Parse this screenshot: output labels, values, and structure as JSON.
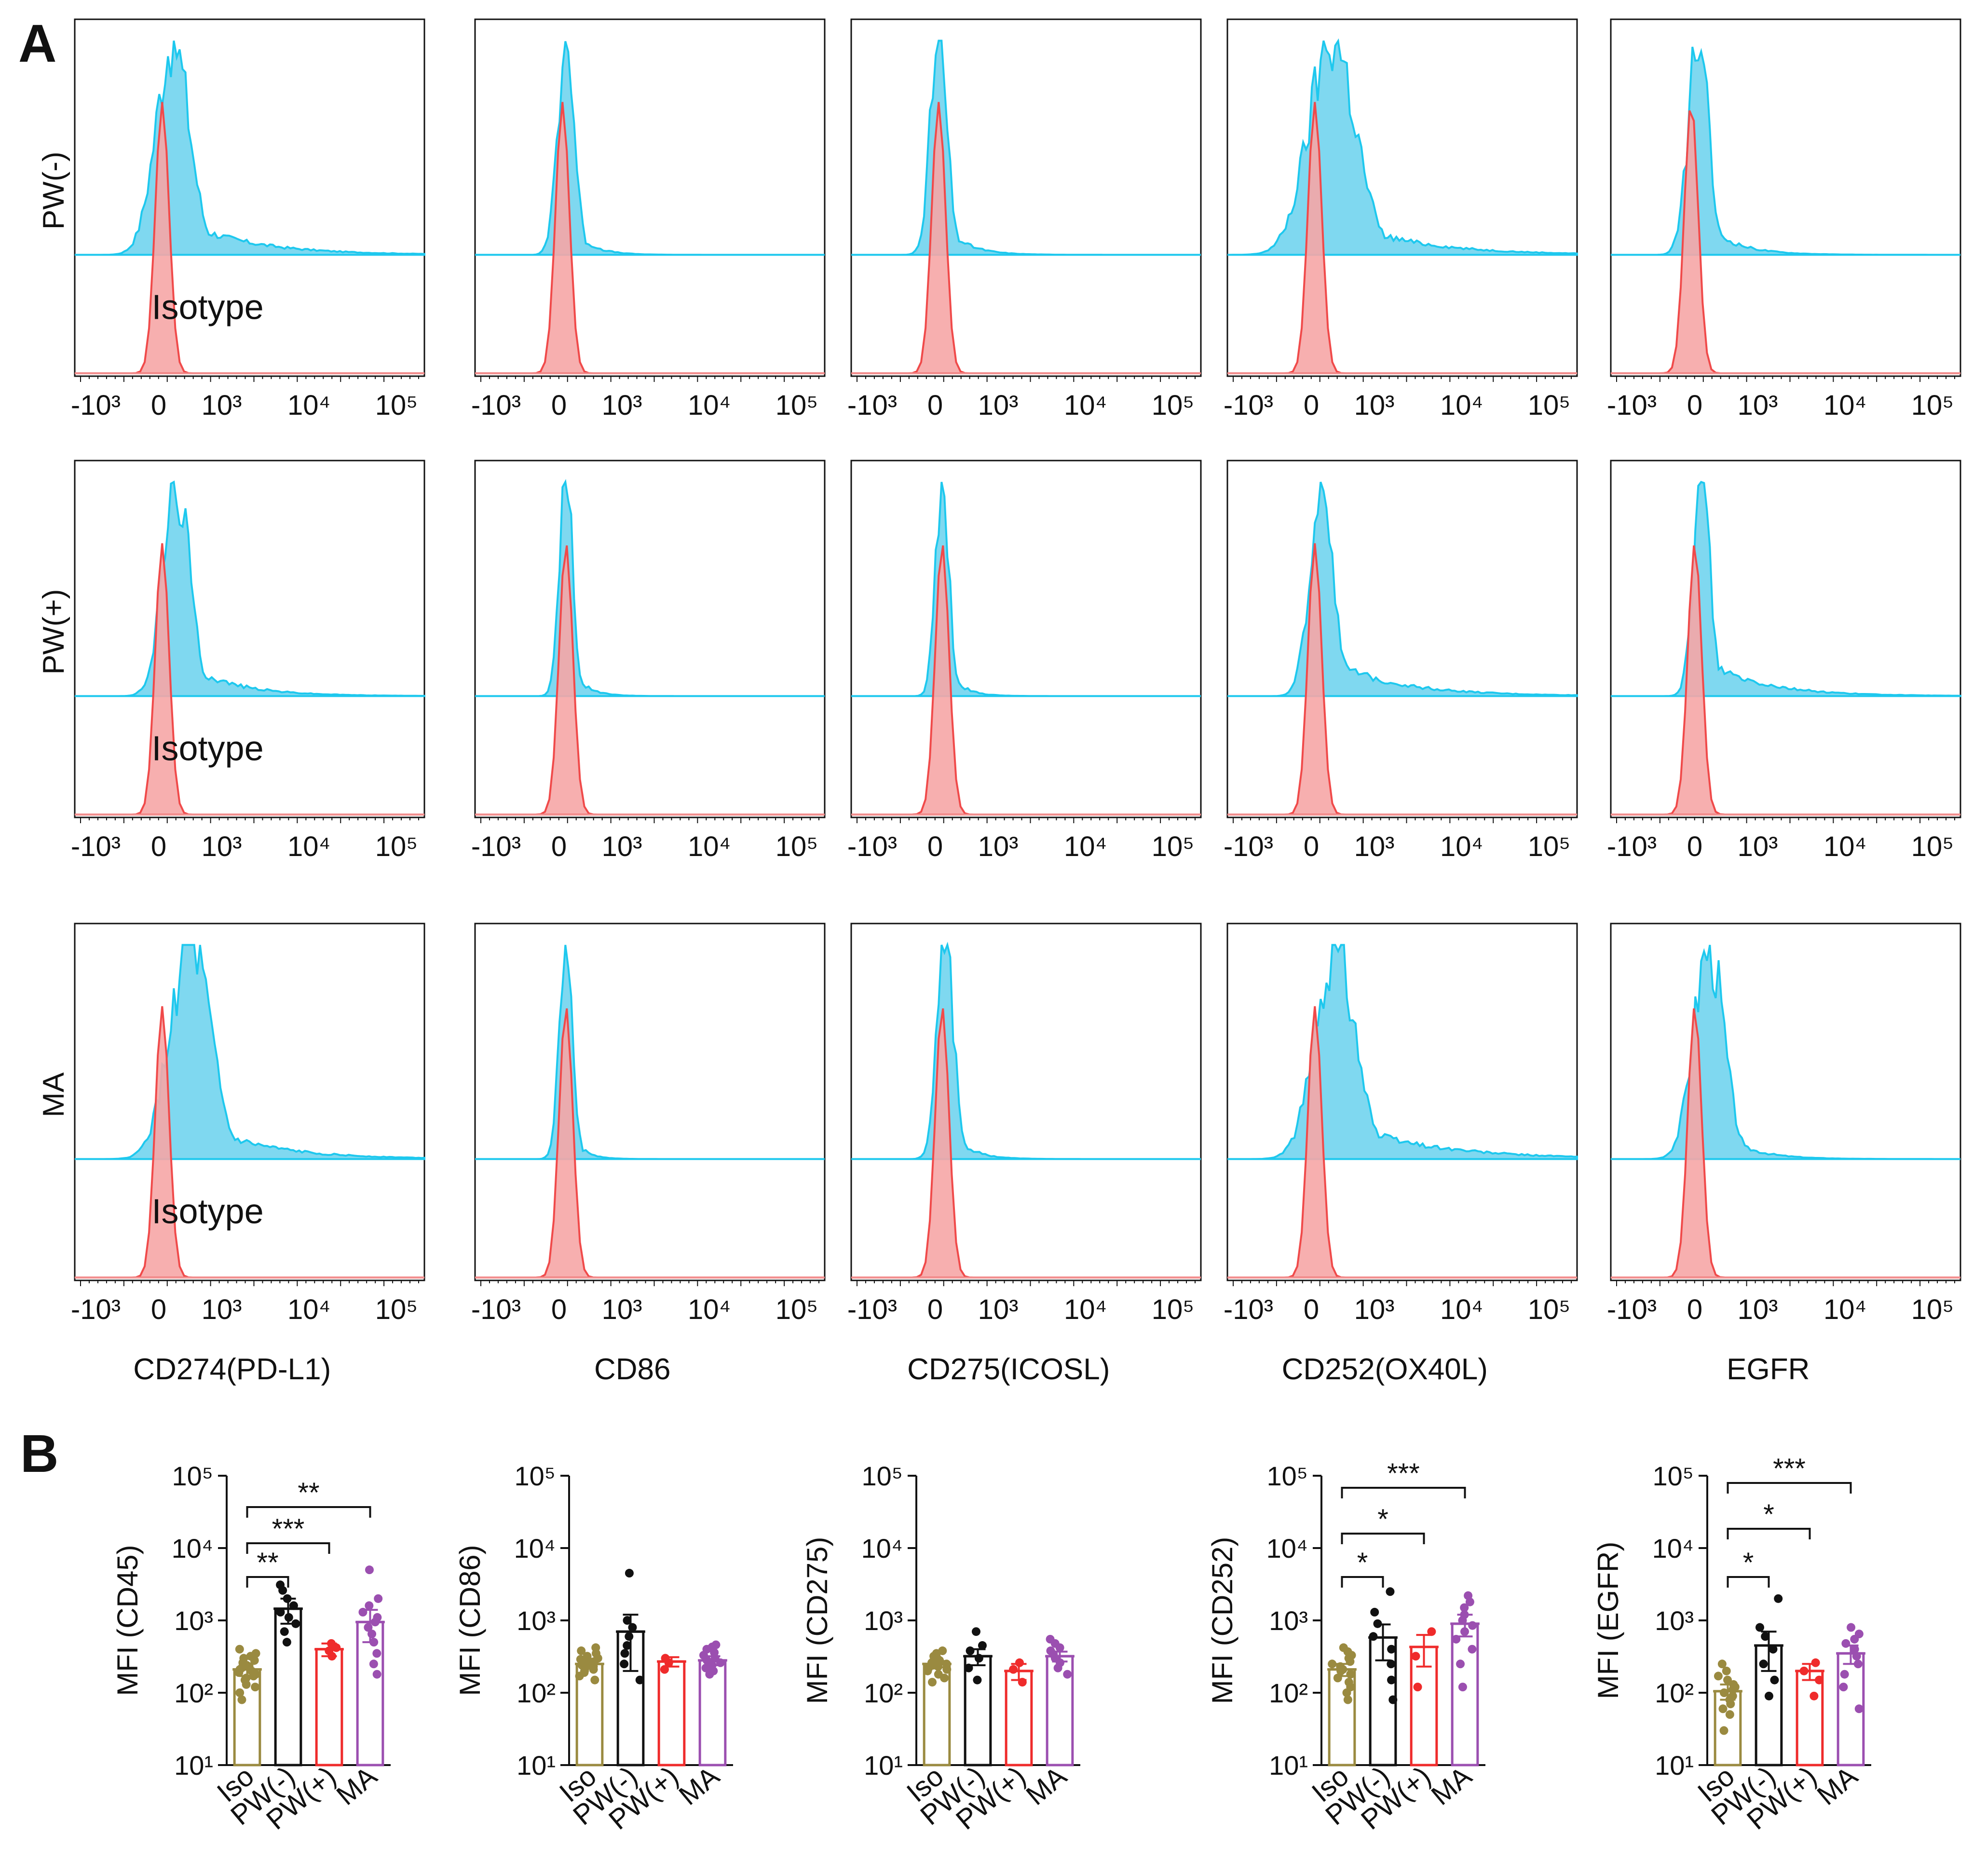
{
  "panel_labels": {
    "A": "A",
    "B": "B"
  },
  "colors": {
    "sample": "#1ec8ee",
    "sample_fill": "#7fd8f0",
    "isotype": "#f04a4a",
    "isotype_fill": "#f6a6a6",
    "axis": "#111111",
    "baseline_red": "#f29a9a",
    "iso_group": "#9a8a40",
    "pwneg_group": "#111111",
    "pwpos_group": "#ef2b2b",
    "ma_group": "#9b4fb0"
  },
  "histograms": {
    "rows": [
      "PW(-)",
      "PW(+)",
      "MA"
    ],
    "markers": [
      "CD274(PD-L1)",
      "CD86",
      "CD275(ICOSL)",
      "CD252(OX40L)",
      "EGFR"
    ],
    "isotype_label": "Isotype",
    "x_ticks": [
      "-10³",
      "0",
      "10³",
      "10⁴",
      "10⁵"
    ]
  },
  "chart_data": [
    {
      "type": "bar",
      "title": "",
      "ylabel": "MFI (CD45)",
      "yscale": "log",
      "ylim": [
        10,
        100000
      ],
      "y_ticks": [
        "10¹",
        "10²",
        "10³",
        "10⁴",
        "10⁵"
      ],
      "categories": [
        "Iso",
        "PW(-)",
        "PW(+)",
        "MA"
      ],
      "values": [
        210,
        1450,
        400,
        950
      ],
      "errors": [
        40,
        550,
        80,
        450
      ],
      "points": [
        [
          80,
          100,
          120,
          130,
          150,
          160,
          170,
          180,
          190,
          200,
          210,
          220,
          230,
          240,
          260,
          280,
          300,
          320,
          350,
          400
        ],
        [
          500,
          700,
          900,
          1100,
          1300,
          1600,
          2000,
          2600,
          3100
        ],
        [
          320,
          380,
          420,
          480
        ],
        [
          180,
          250,
          350,
          500,
          650,
          800,
          950,
          1100,
          1300,
          1600,
          2000,
          5000
        ]
      ],
      "significance": [
        {
          "from": 0,
          "to": 1,
          "label": "**"
        },
        {
          "from": 0,
          "to": 2,
          "label": "***"
        },
        {
          "from": 0,
          "to": 3,
          "label": "**"
        }
      ]
    },
    {
      "type": "bar",
      "title": "",
      "ylabel": "MFI (CD86)",
      "yscale": "log",
      "ylim": [
        10,
        100000
      ],
      "y_ticks": [
        "10¹",
        "10²",
        "10³",
        "10⁴",
        "10⁵"
      ],
      "categories": [
        "Iso",
        "PW(-)",
        "PW(+)",
        "MA"
      ],
      "values": [
        250,
        700,
        270,
        280
      ],
      "errors": [
        25,
        500,
        40,
        40
      ],
      "points": [
        [
          150,
          170,
          190,
          200,
          210,
          220,
          230,
          240,
          250,
          260,
          270,
          280,
          290,
          300,
          320,
          350,
          380,
          420
        ],
        [
          150,
          250,
          350,
          450,
          600,
          800,
          1000,
          4500
        ],
        [
          210,
          260,
          300
        ],
        [
          180,
          200,
          220,
          240,
          260,
          280,
          300,
          330,
          360,
          400,
          430,
          460
        ]
      ],
      "significance": []
    },
    {
      "type": "bar",
      "title": "",
      "ylabel": "MFI (CD275)",
      "yscale": "log",
      "ylim": [
        10,
        100000
      ],
      "y_ticks": [
        "10¹",
        "10²",
        "10³",
        "10⁴",
        "10⁵"
      ],
      "categories": [
        "Iso",
        "PW(-)",
        "PW(+)",
        "MA"
      ],
      "values": [
        250,
        320,
        200,
        320
      ],
      "errors": [
        25,
        80,
        50,
        50
      ],
      "points": [
        [
          140,
          160,
          180,
          200,
          210,
          220,
          230,
          240,
          250,
          260,
          270,
          280,
          300,
          320,
          350,
          380
        ],
        [
          150,
          220,
          300,
          380,
          450,
          700
        ],
        [
          140,
          210,
          260
        ],
        [
          180,
          220,
          260,
          300,
          340,
          380,
          420,
          480,
          550
        ]
      ],
      "significance": []
    },
    {
      "type": "bar",
      "title": "",
      "ylabel": "MFI (CD252)",
      "yscale": "log",
      "ylim": [
        10,
        100000
      ],
      "y_ticks": [
        "10¹",
        "10²",
        "10³",
        "10⁴",
        "10⁵"
      ],
      "categories": [
        "Iso",
        "PW(-)",
        "PW(+)",
        "MA"
      ],
      "values": [
        210,
        580,
        430,
        900
      ],
      "errors": [
        40,
        300,
        200,
        300
      ],
      "points": [
        [
          80,
          100,
          120,
          140,
          160,
          180,
          200,
          210,
          230,
          250,
          270,
          300,
          330,
          370,
          420
        ],
        [
          80,
          150,
          250,
          400,
          600,
          900,
          1300,
          2500
        ],
        [
          120,
          320,
          700
        ],
        [
          120,
          250,
          400,
          550,
          700,
          850,
          1000,
          1200,
          1500,
          1800,
          2200
        ]
      ],
      "significance": [
        {
          "from": 0,
          "to": 1,
          "label": "*"
        },
        {
          "from": 0,
          "to": 2,
          "label": "*"
        },
        {
          "from": 0,
          "to": 3,
          "label": "***"
        }
      ]
    },
    {
      "type": "bar",
      "title": "",
      "ylabel": "MFI (EGFR)",
      "yscale": "log",
      "ylim": [
        10,
        100000
      ],
      "y_ticks": [
        "10¹",
        "10²",
        "10³",
        "10⁴",
        "10⁵"
      ],
      "categories": [
        "Iso",
        "PW(-)",
        "PW(+)",
        "MA"
      ],
      "values": [
        105,
        450,
        200,
        350
      ],
      "errors": [
        25,
        250,
        50,
        100
      ],
      "points": [
        [
          30,
          50,
          60,
          70,
          80,
          90,
          100,
          110,
          120,
          130,
          150,
          170,
          200,
          250
        ],
        [
          90,
          150,
          250,
          400,
          600,
          800,
          2000
        ],
        [
          90,
          150,
          200,
          260
        ],
        [
          60,
          120,
          180,
          250,
          320,
          400,
          480,
          550,
          650,
          800
        ]
      ],
      "significance": [
        {
          "from": 0,
          "to": 1,
          "label": "*"
        },
        {
          "from": 0,
          "to": 2,
          "label": "*"
        },
        {
          "from": 0,
          "to": 3,
          "label": "***"
        }
      ]
    }
  ]
}
